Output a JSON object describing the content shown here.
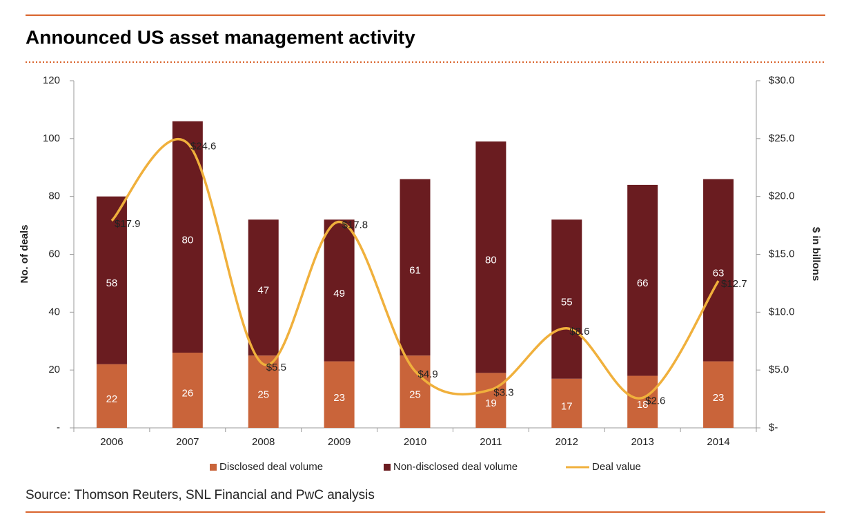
{
  "chart_data": {
    "type": "bar",
    "title": "Announced US asset management activity",
    "source": "Source: Thomson Reuters, SNL Financial and PwC analysis",
    "y_label": "No. of deals",
    "y2_label": "$ in billons",
    "categories": [
      "2006",
      "2007",
      "2008",
      "2009",
      "2010",
      "2011",
      "2012",
      "2013",
      "2014"
    ],
    "series": [
      {
        "name": "Disclosed deal volume",
        "type": "bar",
        "color": "#c9643a",
        "values": [
          22,
          26,
          25,
          23,
          25,
          19,
          17,
          18,
          23
        ]
      },
      {
        "name": "Non-disclosed deal volume",
        "type": "bar",
        "color": "#6a1c20",
        "values": [
          58,
          80,
          47,
          49,
          61,
          80,
          55,
          66,
          63
        ]
      },
      {
        "name": "Deal value",
        "type": "line",
        "axis": "y2",
        "color": "#f0b03c",
        "values": [
          17.9,
          24.6,
          5.5,
          17.8,
          4.9,
          3.3,
          8.6,
          2.6,
          12.7
        ],
        "value_labels": [
          "$17.9",
          "$24.6",
          "$5.5",
          "$17.8",
          "$4.9",
          "$3.3",
          "$8.6",
          "$2.6",
          "$12.7"
        ]
      }
    ],
    "stacked": true,
    "ylim": [
      0,
      120
    ],
    "yticks": [
      {
        "value": 0,
        "label": "-"
      },
      20,
      40,
      60,
      80,
      100,
      120
    ],
    "y2lim": [
      0,
      30
    ],
    "y2ticks": [
      {
        "value": 0,
        "label": "$-"
      },
      {
        "value": 5,
        "label": "$5.0"
      },
      {
        "value": 10,
        "label": "$10.0"
      },
      {
        "value": 15,
        "label": "$15.0"
      },
      {
        "value": 20,
        "label": "$20.0"
      },
      {
        "value": 25,
        "label": "$25.0"
      },
      {
        "value": 30,
        "label": "$30.0"
      }
    ]
  }
}
